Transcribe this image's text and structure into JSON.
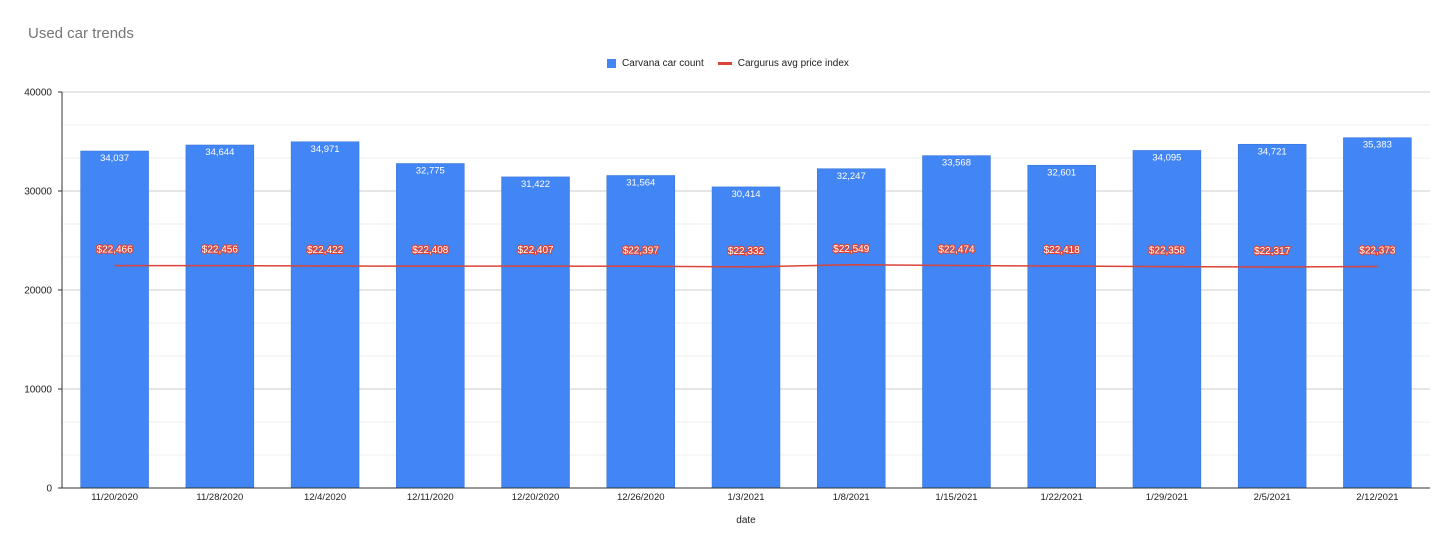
{
  "chart_data": {
    "type": "bar",
    "title": "Used car trends",
    "xlabel": "date",
    "ylabel": "",
    "ylim": [
      0,
      40000
    ],
    "yticks": [
      0,
      10000,
      20000,
      30000,
      40000
    ],
    "grid": true,
    "legend_position": "top",
    "categories": [
      "11/20/2020",
      "11/28/2020",
      "12/4/2020",
      "12/11/2020",
      "12/20/2020",
      "12/26/2020",
      "1/3/2021",
      "1/8/2021",
      "1/15/2021",
      "1/22/2021",
      "1/29/2021",
      "2/5/2021",
      "2/12/2021"
    ],
    "series": [
      {
        "name": "Carvana car count",
        "type": "bar",
        "color": "#4285f4",
        "values": [
          34037,
          34644,
          34971,
          32775,
          31422,
          31564,
          30414,
          32247,
          33568,
          32601,
          34095,
          34721,
          35383
        ],
        "labels": [
          "34,037",
          "34,644",
          "34,971",
          "32,775",
          "31,422",
          "31,564",
          "30,414",
          "32,247",
          "33,568",
          "32,601",
          "34,095",
          "34,721",
          "35,383"
        ]
      },
      {
        "name": "Cargurus avg price index",
        "type": "line",
        "color": "#db4437",
        "values": [
          22466,
          22456,
          22422,
          22408,
          22407,
          22397,
          22332,
          22549,
          22474,
          22418,
          22358,
          22317,
          22373
        ],
        "labels": [
          "$22,466",
          "$22,456",
          "$22,422",
          "$22,408",
          "$22,407",
          "$22,397",
          "$22,332",
          "$22,549",
          "$22,474",
          "$22,418",
          "$22,358",
          "$22,317",
          "$22,373"
        ]
      }
    ]
  }
}
